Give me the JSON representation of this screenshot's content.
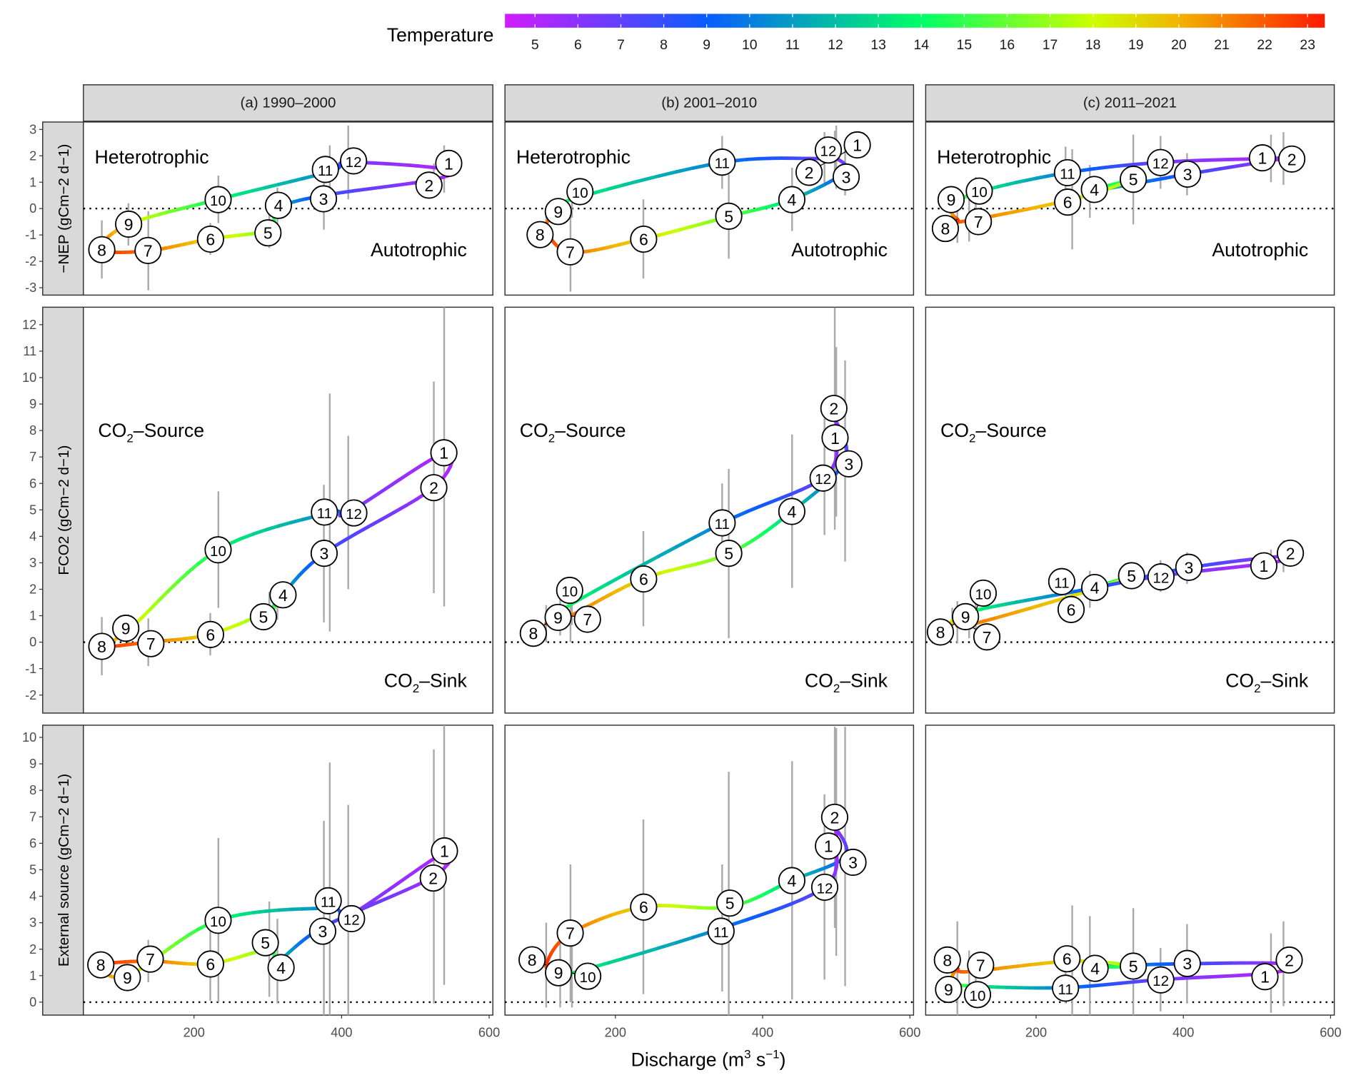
{
  "chart_data": {
    "type": "line",
    "xlabel": "Discharge (m3 s−1)",
    "xlabel_parts": {
      "base": "Discharge (m",
      "sup1": "3",
      "mid": " s",
      "sup2": "−1",
      "end": ")"
    },
    "xlim": [
      50,
      605
    ],
    "xticks": [
      200,
      400,
      600
    ],
    "legend": {
      "title": "Temperature",
      "position": "top",
      "range": [
        4.3,
        23.4
      ],
      "ticks": [
        5,
        6,
        7,
        8,
        9,
        10,
        11,
        12,
        13,
        14,
        15,
        16,
        17,
        18,
        19,
        20,
        21,
        22,
        23
      ],
      "colors": [
        [
          4.3,
          "#d21cff"
        ],
        [
          9,
          "#0a5cff"
        ],
        [
          14,
          "#00ff66"
        ],
        [
          18,
          "#ccff00"
        ],
        [
          20,
          "#f2b400"
        ],
        [
          23.4,
          "#ff1a00"
        ]
      ]
    },
    "month_temperature": {
      "1": 5,
      "2": 5.2,
      "3": 8,
      "4": 12.5,
      "5": 16,
      "6": 19,
      "7": 21.5,
      "8": 23,
      "9": 19,
      "10": 14,
      "11": 10,
      "12": 6.5
    },
    "columns": [
      "(a) 1990–2000",
      "(b) 2001–2010",
      "(c) 2011–2021"
    ],
    "rows": [
      {
        "ylabel": "−NEP (gCm−2 d−1)",
        "ylabel_parts": {
          "base": "−NEP (gCm",
          "sup1": "−2",
          "mid": " d",
          "sup2": "−1",
          "end": ")"
        },
        "ylim": [
          -3.28,
          3.28
        ],
        "yticks": [
          -3,
          -2,
          -1,
          0,
          1,
          2,
          3
        ],
        "top_label": "Heterotrophic",
        "bottom_label": "Autotrophic",
        "panels": [
          [
            [
              539,
              1.5,
              0.9
            ],
            [
              525,
              1.1,
              0.6
            ],
            [
              376,
              0.5,
              1.3
            ],
            [
              313,
              0.0,
              0.8
            ],
            [
              302,
              -0.8,
              0.7
            ],
            [
              222,
              -1.15,
              0.6
            ],
            [
              138,
              -1.6,
              1.5
            ],
            [
              75,
              -1.55,
              1.1
            ],
            [
              111,
              -0.6,
              0.8
            ],
            [
              233,
              0.35,
              0.9
            ],
            [
              384,
              1.4,
              1.0
            ],
            [
              409,
              1.75,
              1.4
            ]
          ],
          [
            [
              500,
              1.95,
              1.2
            ],
            [
              498,
              1.95,
              1.0
            ],
            [
              512,
              1.4,
              0.9
            ],
            [
              440,
              0.35,
              1.2
            ],
            [
              354,
              -0.3,
              1.6
            ],
            [
              238,
              -1.15,
              1.5
            ],
            [
              139,
              -1.65,
              1.5
            ],
            [
              106,
              -0.7,
              0.5
            ],
            [
              125,
              -0.1,
              0.5
            ],
            [
              141,
              0.35,
              0.7
            ],
            [
              345,
              1.75,
              1.0
            ],
            [
              484,
              1.9,
              1.0
            ]
          ],
          [
            [
              519,
              1.9,
              0.9
            ],
            [
              536,
              1.9,
              1.0
            ],
            [
              405,
              1.3,
              0.8
            ],
            [
              273,
              0.65,
              1.0
            ],
            [
              332,
              1.1,
              1.7
            ],
            [
              249,
              0.35,
              1.9
            ],
            [
              109,
              -0.45,
              0.8
            ],
            [
              93,
              -0.4,
              0.9
            ],
            [
              86,
              0.0,
              0.6
            ],
            [
              118,
              0.6,
              0.6
            ],
            [
              240,
              1.35,
              1.0
            ],
            [
              369,
              1.75,
              1.0
            ]
          ]
        ]
      },
      {
        "ylabel": "FCO2 (gCm−2 d−1)",
        "ylabel_parts": {
          "base": "FCO",
          "sub": "2",
          "mid0": " (gCm",
          "sup1": "−2",
          "mid": " d",
          "sup2": "−1",
          "end": ")"
        },
        "ylim": [
          -2.68,
          12.66
        ],
        "yticks": [
          -2,
          -1,
          0,
          1,
          2,
          3,
          4,
          5,
          6,
          7,
          8,
          9,
          10,
          11,
          12
        ],
        "top_label": "CO2–Source",
        "bottom_label": "CO2–Sink",
        "panels": [
          [
            [
              539,
              7.15,
              5.8
            ],
            [
              525,
              5.85,
              4.0
            ],
            [
              376,
              3.35,
              2.6
            ],
            [
              313,
              1.55,
              0.7
            ],
            [
              302,
              1.2,
              0.7
            ],
            [
              222,
              0.3,
              0.8
            ],
            [
              138,
              0.0,
              0.9
            ],
            [
              75,
              -0.15,
              1.1
            ],
            [
              111,
              0.45,
              0.6
            ],
            [
              233,
              3.5,
              2.2
            ],
            [
              384,
              4.9,
              4.5
            ],
            [
              409,
              4.9,
              2.9
            ]
          ],
          [
            [
              500,
              7.95,
              3.2
            ],
            [
              498,
              8.45,
              4.2
            ],
            [
              512,
              6.85,
              3.8
            ],
            [
              440,
              4.95,
              2.9
            ],
            [
              354,
              3.35,
              3.2
            ],
            [
              238,
              2.4,
              1.8
            ],
            [
              139,
              1.0,
              1.0
            ],
            [
              106,
              0.7,
              0.7
            ],
            [
              125,
              0.95,
              0.7
            ],
            [
              141,
              1.45,
              0.8
            ],
            [
              345,
              4.5,
              1.5
            ],
            [
              484,
              6.25,
              2.2
            ]
          ],
          [
            [
              519,
              3.0,
              0.5
            ],
            [
              536,
              3.25,
              0.6
            ],
            [
              405,
              2.8,
              0.6
            ],
            [
              273,
              2.0,
              0.7
            ],
            [
              332,
              2.5,
              0.5
            ],
            [
              249,
              1.75,
              0.6
            ],
            [
              109,
              0.65,
              0.5
            ],
            [
              93,
              0.75,
              0.8
            ],
            [
              86,
              0.8,
              0.5
            ],
            [
              118,
              1.2,
              0.7
            ],
            [
              240,
              1.85,
              0.6
            ],
            [
              369,
              2.5,
              0.6
            ]
          ]
        ]
      },
      {
        "ylabel": "External source (gCm−2 d−1)",
        "ylabel_parts": {
          "base": "External source (gCm",
          "sup1": "−2",
          "mid": " d",
          "sup2": "−1",
          "end": ")"
        },
        "ylim": [
          -0.49,
          10.46
        ],
        "yticks": [
          0,
          1,
          2,
          3,
          4,
          5,
          6,
          7,
          8,
          9,
          10
        ],
        "top_label": "",
        "bottom_label": "",
        "panels": [
          [
            [
              539,
              5.65,
              5.0
            ],
            [
              525,
              4.75,
              4.8
            ],
            [
              376,
              2.85,
              4.0
            ],
            [
              313,
              1.55,
              1.6
            ],
            [
              302,
              2.0,
              1.8
            ],
            [
              222,
              1.45,
              1.4
            ],
            [
              138,
              1.55,
              0.8
            ],
            [
              75,
              1.4,
              0.5
            ],
            [
              111,
              1.0,
              0.4
            ],
            [
              233,
              3.1,
              3.1
            ],
            [
              384,
              3.55,
              5.5
            ],
            [
              409,
              3.25,
              4.2
            ]
          ],
          [
            [
              500,
              6.05,
              4.3
            ],
            [
              498,
              6.6,
              3.8
            ],
            [
              512,
              5.5,
              4.9
            ],
            [
              440,
              4.6,
              4.5
            ],
            [
              354,
              3.6,
              5.1
            ],
            [
              238,
              3.6,
              3.3
            ],
            [
              139,
              2.6,
              2.6
            ],
            [
              106,
              1.4,
              1.6
            ],
            [
              125,
              1.2,
              1.4
            ],
            [
              141,
              1.1,
              1.3
            ],
            [
              345,
              2.8,
              2.4
            ],
            [
              484,
              4.35,
              3.5
            ]
          ],
          [
            [
              519,
              1.1,
              1.5
            ],
            [
              536,
              1.45,
              1.6
            ],
            [
              405,
              1.45,
              1.5
            ],
            [
              273,
              1.35,
              1.9
            ],
            [
              332,
              1.35,
              2.2
            ],
            [
              249,
              1.55,
              2.1
            ],
            [
              109,
              1.15,
              0.8
            ],
            [
              93,
              1.25,
              1.8
            ],
            [
              86,
              0.75,
              0.5
            ],
            [
              118,
              0.6,
              0.5
            ],
            [
              240,
              0.55,
              0.6
            ],
            [
              369,
              0.85,
              1.2
            ]
          ]
        ]
      }
    ]
  }
}
